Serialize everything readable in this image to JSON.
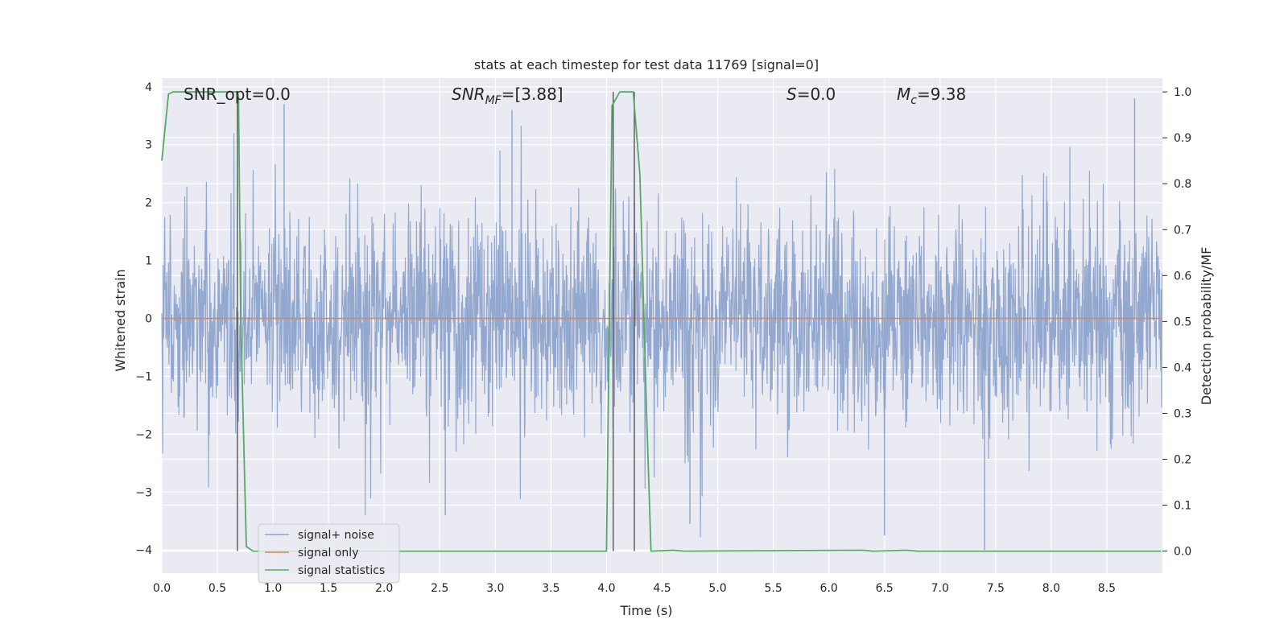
{
  "chart_data": {
    "type": "line",
    "title": "stats at each timestep for test data 11769 [signal=0]",
    "xlabel": "Time (s)",
    "ylabel_left": "Whitened strain",
    "ylabel_right": "Detection probability/MF",
    "xlim": [
      0.0,
      9.0
    ],
    "ylim_left": [
      -4.4,
      4.15
    ],
    "ylim_right": [
      -0.048,
      1.03
    ],
    "x_ticks": [
      "0.0",
      "0.5",
      "1.0",
      "1.5",
      "2.0",
      "2.5",
      "3.0",
      "3.5",
      "4.0",
      "4.5",
      "5.0",
      "5.5",
      "6.0",
      "6.5",
      "7.0",
      "7.5",
      "8.0",
      "8.5"
    ],
    "y_ticks_left": [
      "4",
      "3",
      "2",
      "1",
      "0",
      "−1",
      "−2",
      "−3",
      "−4"
    ],
    "y_ticks_right": [
      "1.0",
      "0.9",
      "0.8",
      "0.7",
      "0.6",
      "0.5",
      "0.4",
      "0.3",
      "0.2",
      "0.1",
      "0.0"
    ],
    "grid": true,
    "legend_placement": "lower-left",
    "annotations": {
      "snr_opt": "SNR_opt=0.0",
      "snr_mf_base": "SNR",
      "snr_mf_sub": "MF",
      "snr_mf_value": "=[3.88]",
      "s_base": "S",
      "s_value": "=0.0",
      "mc_base": "M",
      "mc_sub": "c",
      "mc_value": "=9.38"
    },
    "series": [
      {
        "name": "signal+ noise",
        "color": "#8ea4cc",
        "description_kind": "dense whitened noise",
        "envelope": {
          "typical_upper": 2.1,
          "typical_lower": -2.0,
          "max": 3.75,
          "min": -4.0
        }
      },
      {
        "name": "signal only",
        "color": "#dd8452",
        "x": [
          0.0,
          9.0
        ],
        "y": [
          0.0,
          0.0
        ]
      },
      {
        "name": "signal statistics",
        "color": "#55a868",
        "axis": "right",
        "x": [
          0.0,
          0.06,
          0.1,
          0.5,
          0.68,
          0.69,
          0.71,
          0.76,
          0.82,
          4.0,
          4.05,
          4.12,
          4.24,
          4.3,
          4.36,
          4.4,
          4.6,
          4.7,
          6.3,
          6.4,
          6.7,
          6.8,
          8.99
        ],
        "y": [
          0.85,
          0.995,
          1.0,
          1.0,
          1.0,
          0.99,
          0.5,
          0.01,
          0.0,
          0.0,
          0.97,
          1.0,
          1.0,
          0.82,
          0.3,
          0.0,
          0.002,
          0.0,
          0.002,
          0.0,
          0.002,
          0.0,
          0.0
        ]
      }
    ],
    "vertical_markers_x": [
      0.68,
      4.06,
      4.25
    ]
  }
}
